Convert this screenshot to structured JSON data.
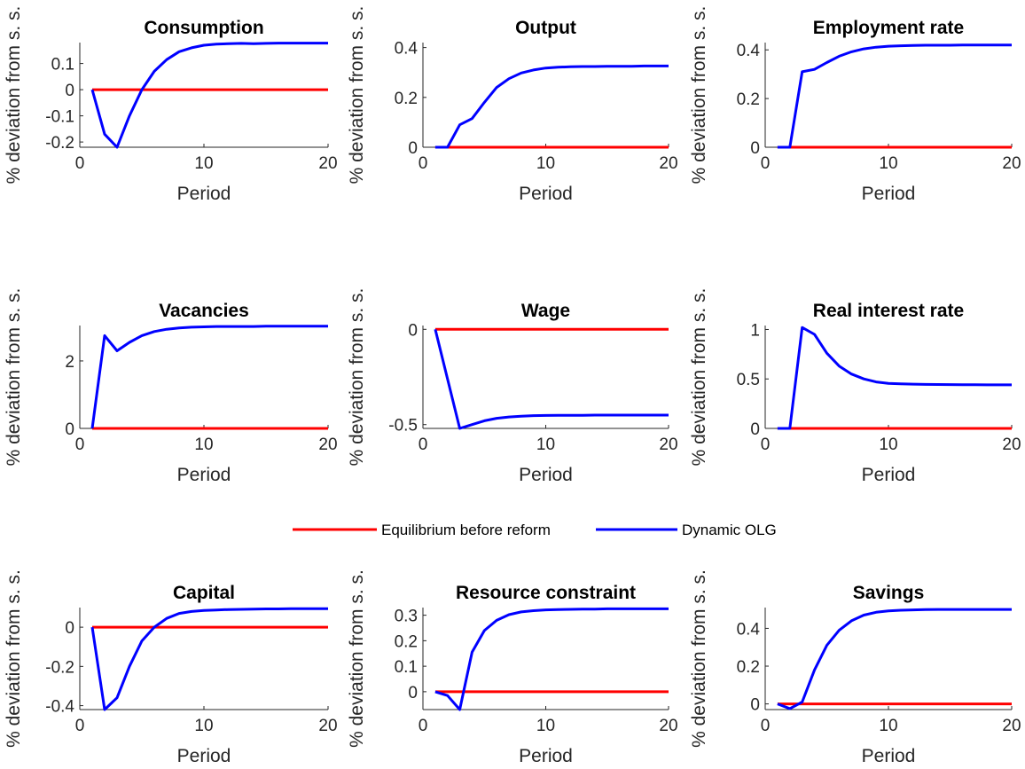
{
  "legend": {
    "entries": [
      {
        "label": "Equilibrium before reform",
        "color": "#ff0000"
      },
      {
        "label": "Dynamic OLG",
        "color": "#0000ff"
      }
    ]
  },
  "chart_data": [
    {
      "type": "line",
      "title": "Consumption",
      "xlabel": "Period",
      "ylabel": "% deviation from s. s.",
      "xlim": [
        0,
        20
      ],
      "ylim": [
        -0.22,
        0.18
      ],
      "xticks": [
        0,
        10,
        20
      ],
      "yticks": [
        -0.2,
        -0.1,
        0,
        0.1
      ],
      "ytick_labels": [
        "-0.2",
        "-0.1",
        "0",
        "0.1"
      ],
      "x": [
        1,
        2,
        3,
        4,
        5,
        6,
        7,
        8,
        9,
        10,
        11,
        12,
        13,
        14,
        15,
        16,
        17,
        18,
        19,
        20
      ],
      "series": [
        {
          "name": "Equilibrium before reform",
          "color": "#ff0000",
          "values": [
            0,
            0,
            0,
            0,
            0,
            0,
            0,
            0,
            0,
            0,
            0,
            0,
            0,
            0,
            0,
            0,
            0,
            0,
            0,
            0
          ]
        },
        {
          "name": "Dynamic OLG",
          "color": "#0000ff",
          "values": [
            0,
            -0.17,
            -0.22,
            -0.1,
            0.0,
            0.07,
            0.115,
            0.145,
            0.16,
            0.17,
            0.174,
            0.176,
            0.177,
            0.176,
            0.177,
            0.178,
            0.178,
            0.178,
            0.178,
            0.178
          ]
        }
      ]
    },
    {
      "type": "line",
      "title": "Output",
      "xlabel": "Period",
      "ylabel": "% deviation from s. s.",
      "xlim": [
        0,
        20
      ],
      "ylim": [
        0,
        0.42
      ],
      "xticks": [
        0,
        10,
        20
      ],
      "yticks": [
        0,
        0.2,
        0.4
      ],
      "ytick_labels": [
        "0",
        "0.2",
        "0.4"
      ],
      "x": [
        1,
        2,
        3,
        4,
        5,
        6,
        7,
        8,
        9,
        10,
        11,
        12,
        13,
        14,
        15,
        16,
        17,
        18,
        19,
        20
      ],
      "series": [
        {
          "name": "Equilibrium before reform",
          "color": "#ff0000",
          "values": [
            0,
            0,
            0,
            0,
            0,
            0,
            0,
            0,
            0,
            0,
            0,
            0,
            0,
            0,
            0,
            0,
            0,
            0,
            0,
            0
          ]
        },
        {
          "name": "Dynamic OLG",
          "color": "#0000ff",
          "values": [
            0,
            0,
            0.09,
            0.115,
            0.18,
            0.24,
            0.275,
            0.298,
            0.31,
            0.318,
            0.321,
            0.323,
            0.324,
            0.324,
            0.325,
            0.325,
            0.325,
            0.326,
            0.326,
            0.326
          ]
        }
      ]
    },
    {
      "type": "line",
      "title": "Employment rate",
      "xlabel": "Period",
      "ylabel": "% deviation from s. s.",
      "xlim": [
        0,
        20
      ],
      "ylim": [
        0,
        0.43
      ],
      "xticks": [
        0,
        10,
        20
      ],
      "yticks": [
        0,
        0.2,
        0.4
      ],
      "ytick_labels": [
        "0",
        "0.2",
        "0.4"
      ],
      "x": [
        1,
        2,
        3,
        4,
        5,
        6,
        7,
        8,
        9,
        10,
        11,
        12,
        13,
        14,
        15,
        16,
        17,
        18,
        19,
        20
      ],
      "series": [
        {
          "name": "Equilibrium before reform",
          "color": "#ff0000",
          "values": [
            0,
            0,
            0,
            0,
            0,
            0,
            0,
            0,
            0,
            0,
            0,
            0,
            0,
            0,
            0,
            0,
            0,
            0,
            0,
            0
          ]
        },
        {
          "name": "Dynamic OLG",
          "color": "#0000ff",
          "values": [
            0,
            0,
            0.31,
            0.32,
            0.348,
            0.374,
            0.392,
            0.404,
            0.411,
            0.415,
            0.417,
            0.418,
            0.419,
            0.419,
            0.419,
            0.42,
            0.42,
            0.42,
            0.42,
            0.42
          ]
        }
      ]
    },
    {
      "type": "line",
      "title": "Vacancies",
      "xlabel": "Period",
      "ylabel": "% deviation from s. s.",
      "xlim": [
        0,
        20
      ],
      "ylim": [
        0,
        3.05
      ],
      "xticks": [
        0,
        10,
        20
      ],
      "yticks": [
        0,
        2
      ],
      "ytick_labels": [
        "0",
        "2"
      ],
      "x": [
        1,
        2,
        3,
        4,
        5,
        6,
        7,
        8,
        9,
        10,
        11,
        12,
        13,
        14,
        15,
        16,
        17,
        18,
        19,
        20
      ],
      "series": [
        {
          "name": "Equilibrium before reform",
          "color": "#ff0000",
          "values": [
            0,
            0,
            0,
            0,
            0,
            0,
            0,
            0,
            0,
            0,
            0,
            0,
            0,
            0,
            0,
            0,
            0,
            0,
            0,
            0
          ]
        },
        {
          "name": "Dynamic OLG",
          "color": "#0000ff",
          "values": [
            0,
            2.75,
            2.3,
            2.55,
            2.75,
            2.87,
            2.94,
            2.98,
            3.0,
            3.01,
            3.02,
            3.02,
            3.02,
            3.02,
            3.03,
            3.03,
            3.03,
            3.03,
            3.03,
            3.03
          ]
        }
      ]
    },
    {
      "type": "line",
      "title": "Wage",
      "xlabel": "Period",
      "ylabel": "% deviation from s. s.",
      "xlim": [
        0,
        20
      ],
      "ylim": [
        -0.52,
        0.02
      ],
      "xticks": [
        0,
        10,
        20
      ],
      "yticks": [
        -0.5,
        0
      ],
      "ytick_labels": [
        "-0.5",
        "0"
      ],
      "x": [
        1,
        2,
        3,
        4,
        5,
        6,
        7,
        8,
        9,
        10,
        11,
        12,
        13,
        14,
        15,
        16,
        17,
        18,
        19,
        20
      ],
      "series": [
        {
          "name": "Equilibrium before reform",
          "color": "#ff0000",
          "values": [
            0,
            0,
            0,
            0,
            0,
            0,
            0,
            0,
            0,
            0,
            0,
            0,
            0,
            0,
            0,
            0,
            0,
            0,
            0,
            0
          ]
        },
        {
          "name": "Dynamic OLG",
          "color": "#0000ff",
          "values": [
            0,
            -0.26,
            -0.52,
            -0.5,
            -0.48,
            -0.467,
            -0.46,
            -0.456,
            -0.453,
            -0.452,
            -0.451,
            -0.451,
            -0.451,
            -0.45,
            -0.45,
            -0.45,
            -0.45,
            -0.45,
            -0.45,
            -0.45
          ]
        }
      ]
    },
    {
      "type": "line",
      "title": "Real interest rate",
      "xlabel": "Period",
      "ylabel": "% deviation from s. s.",
      "xlim": [
        0,
        20
      ],
      "ylim": [
        0,
        1.04
      ],
      "xticks": [
        0,
        10,
        20
      ],
      "yticks": [
        0,
        0.5,
        1
      ],
      "ytick_labels": [
        "0",
        "0.5",
        "1"
      ],
      "x": [
        1,
        2,
        3,
        4,
        5,
        6,
        7,
        8,
        9,
        10,
        11,
        12,
        13,
        14,
        15,
        16,
        17,
        18,
        19,
        20
      ],
      "series": [
        {
          "name": "Equilibrium before reform",
          "color": "#ff0000",
          "values": [
            0,
            0,
            0,
            0,
            0,
            0,
            0,
            0,
            0,
            0,
            0,
            0,
            0,
            0,
            0,
            0,
            0,
            0,
            0,
            0
          ]
        },
        {
          "name": "Dynamic OLG",
          "color": "#0000ff",
          "values": [
            0,
            0,
            1.02,
            0.95,
            0.76,
            0.63,
            0.55,
            0.5,
            0.47,
            0.455,
            0.45,
            0.447,
            0.445,
            0.444,
            0.443,
            0.442,
            0.441,
            0.44,
            0.44,
            0.44
          ]
        }
      ]
    },
    {
      "type": "line",
      "title": "Capital",
      "xlabel": "Period",
      "ylabel": "% deviation from s. s.",
      "xlim": [
        0,
        20
      ],
      "ylim": [
        -0.42,
        0.1
      ],
      "xticks": [
        0,
        10,
        20
      ],
      "yticks": [
        -0.4,
        -0.2,
        0
      ],
      "ytick_labels": [
        "-0.4",
        "-0.2",
        "0"
      ],
      "x": [
        1,
        2,
        3,
        4,
        5,
        6,
        7,
        8,
        9,
        10,
        11,
        12,
        13,
        14,
        15,
        16,
        17,
        18,
        19,
        20
      ],
      "series": [
        {
          "name": "Equilibrium before reform",
          "color": "#ff0000",
          "values": [
            0,
            0,
            0,
            0,
            0,
            0,
            0,
            0,
            0,
            0,
            0,
            0,
            0,
            0,
            0,
            0,
            0,
            0,
            0,
            0
          ]
        },
        {
          "name": "Dynamic OLG",
          "color": "#0000ff",
          "values": [
            0,
            -0.42,
            -0.36,
            -0.2,
            -0.07,
            0.0,
            0.045,
            0.07,
            0.08,
            0.085,
            0.088,
            0.09,
            0.091,
            0.092,
            0.093,
            0.093,
            0.094,
            0.094,
            0.094,
            0.094
          ]
        }
      ]
    },
    {
      "type": "line",
      "title": "Resource constraint",
      "xlabel": "Period",
      "ylabel": "% deviation from s. s.",
      "xlim": [
        0,
        20
      ],
      "ylim": [
        -0.07,
        0.33
      ],
      "xticks": [
        0,
        10,
        20
      ],
      "yticks": [
        0,
        0.1,
        0.2,
        0.3
      ],
      "ytick_labels": [
        "0",
        "0.1",
        "0.2",
        "0.3"
      ],
      "x": [
        1,
        2,
        3,
        4,
        5,
        6,
        7,
        8,
        9,
        10,
        11,
        12,
        13,
        14,
        15,
        16,
        17,
        18,
        19,
        20
      ],
      "series": [
        {
          "name": "Equilibrium before reform",
          "color": "#ff0000",
          "values": [
            0,
            0,
            0,
            0,
            0,
            0,
            0,
            0,
            0,
            0,
            0,
            0,
            0,
            0,
            0,
            0,
            0,
            0,
            0,
            0
          ]
        },
        {
          "name": "Dynamic OLG",
          "color": "#0000ff",
          "values": [
            0,
            -0.015,
            -0.07,
            0.155,
            0.24,
            0.28,
            0.302,
            0.313,
            0.318,
            0.321,
            0.322,
            0.323,
            0.324,
            0.324,
            0.325,
            0.325,
            0.325,
            0.325,
            0.325,
            0.325
          ]
        }
      ]
    },
    {
      "type": "line",
      "title": "Savings",
      "xlabel": "Period",
      "ylabel": "% deviation from s. s.",
      "xlim": [
        0,
        20
      ],
      "ylim": [
        -0.03,
        0.51
      ],
      "xticks": [
        0,
        10,
        20
      ],
      "yticks": [
        0,
        0.2,
        0.4
      ],
      "ytick_labels": [
        "0",
        "0.2",
        "0.4"
      ],
      "x": [
        1,
        2,
        3,
        4,
        5,
        6,
        7,
        8,
        9,
        10,
        11,
        12,
        13,
        14,
        15,
        16,
        17,
        18,
        19,
        20
      ],
      "series": [
        {
          "name": "Equilibrium before reform",
          "color": "#ff0000",
          "values": [
            0,
            0,
            0,
            0,
            0,
            0,
            0,
            0,
            0,
            0,
            0,
            0,
            0,
            0,
            0,
            0,
            0,
            0,
            0,
            0
          ]
        },
        {
          "name": "Dynamic OLG",
          "color": "#0000ff",
          "values": [
            0,
            -0.025,
            0.01,
            0.18,
            0.31,
            0.39,
            0.44,
            0.47,
            0.485,
            0.492,
            0.496,
            0.498,
            0.499,
            0.5,
            0.5,
            0.5,
            0.5,
            0.5,
            0.5,
            0.5
          ]
        }
      ]
    }
  ]
}
